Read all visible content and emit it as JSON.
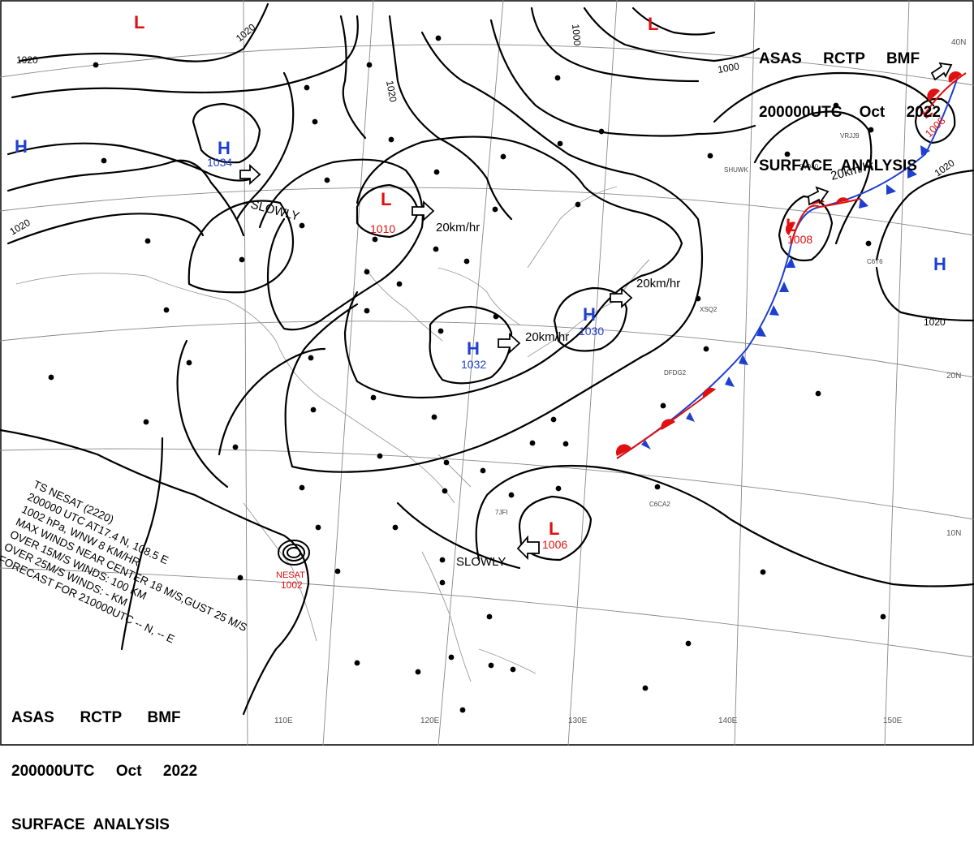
{
  "header_top": {
    "line1": "ASAS     RCTP     BMF",
    "line2": "200000UTC    Oct     2022",
    "line3": "SURFACE  ANALYSIS"
  },
  "header_bottom": {
    "line1": "ASAS      RCTP      BMF",
    "line2": "200000UTC     Oct     2022",
    "line3": "SURFACE  ANALYSIS"
  },
  "isobar_labels": [
    "1020",
    "1020",
    "1020",
    "1020",
    "1000",
    "1000",
    "1020",
    "1020"
  ],
  "pressure_centers": [
    {
      "type": "H",
      "value": "1034"
    },
    {
      "type": "L",
      "value": "1010"
    },
    {
      "type": "H",
      "value": "1032"
    },
    {
      "type": "H",
      "value": "1030"
    },
    {
      "type": "L",
      "value": "1006"
    },
    {
      "type": "L",
      "value": "1008"
    },
    {
      "type": "L",
      "value": "1008"
    },
    {
      "type": "H",
      "value": ""
    },
    {
      "type": "H",
      "value": ""
    },
    {
      "type": "L",
      "value": ""
    },
    {
      "type": "L",
      "value": ""
    }
  ],
  "movements": [
    "SLOWLY",
    "20km/hr",
    "20km/hr",
    "20km/hr",
    "SLOWLY",
    "20km/hr"
  ],
  "grid_labels": {
    "lon": [
      "110E",
      "120E",
      "130E",
      "140E",
      "150E"
    ],
    "lat": [
      "40N",
      "20N",
      "10N"
    ]
  },
  "storm": {
    "name": "NESAT",
    "pressure": "1002",
    "lines": [
      "TS  NESAT  (2220)",
      "200000 UTC  AT17.4 N, 108.5 E",
      "1002 hPa, WNW  8 KM/HR",
      "MAX WINDS NEAR CENTER 18 M/S,GUST 25 M/S",
      "OVER 15M/S WINDS: 100 KM",
      "OVER 25M/S WINDS: - KM",
      "FORECAST FOR 210000UTC -- N, -- E"
    ]
  },
  "station_codes": [
    "SHUWK",
    "9V940",
    "VRJJ9",
    "DFDG2",
    "XSQ2",
    "C6CA2",
    "7JFI",
    "C6T6"
  ],
  "colors": {
    "high": "#1f3fd0",
    "low": "#e01010",
    "front_warm": "#e01010",
    "front_cold": "#1f3fd0",
    "grid": "#888888"
  }
}
